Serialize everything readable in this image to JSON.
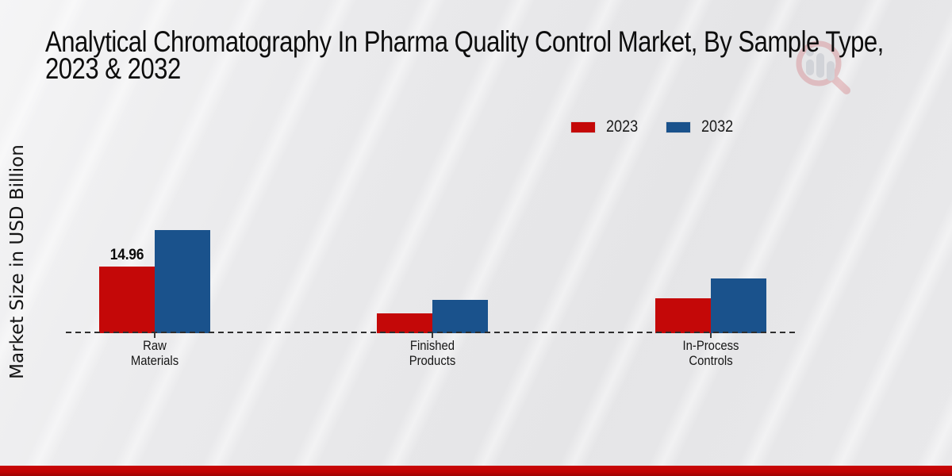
{
  "header": {
    "title_line1": "Analytical Chromatography In Pharma Quality Control Market, By Sample Type,",
    "title_line2": "2023 & 2032"
  },
  "watermark": {
    "icon": "magnifier-bar-chart-logo"
  },
  "chart_data": {
    "type": "bar",
    "title": "Analytical Chromatography In Pharma Quality Control Market, By Sample Type, 2023 & 2032",
    "ylabel": "Market Size in USD Billion",
    "xlabel": "",
    "categories": [
      "Raw Materials",
      "Finished Products",
      "In-Process Controls"
    ],
    "category_lines": [
      [
        "Raw",
        "Materials"
      ],
      [
        "Finished",
        "Products"
      ],
      [
        "In-Process",
        "Controls"
      ]
    ],
    "series": [
      {
        "name": "2023",
        "color": "#c40808",
        "values": [
          14.96,
          4.5,
          7.9
        ]
      },
      {
        "name": "2032",
        "color": "#1a528c",
        "values": [
          23.2,
          7.4,
          12.2
        ]
      }
    ],
    "value_labels": [
      {
        "series_index": 0,
        "category_index": 0,
        "text": "14.96"
      }
    ],
    "ylim": [
      0,
      26
    ],
    "grid": false,
    "legend_position": "top-right",
    "baseline_style": "dashed"
  },
  "colors": {
    "series_2023": "#c40808",
    "series_2032": "#1a528c",
    "footer_bar": "#c00505",
    "background": "#e9e9eb"
  }
}
